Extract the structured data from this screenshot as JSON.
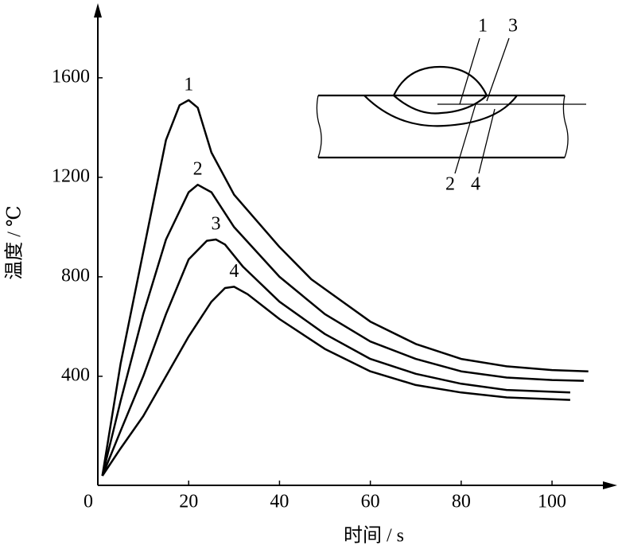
{
  "chart_data": {
    "type": "line",
    "xlabel": "时间 / s",
    "ylabel": "温度 / ℃",
    "xlim": [
      0,
      114
    ],
    "ylim": [
      0,
      1900
    ],
    "xticks": [
      0,
      20,
      40,
      60,
      80,
      100
    ],
    "yticks": [
      400,
      800,
      1200,
      1600
    ],
    "color": "#000000",
    "series": [
      {
        "name": "1",
        "x": [
          1,
          5,
          10,
          15,
          18,
          20,
          22,
          25,
          30,
          40,
          47,
          60,
          70,
          80,
          90,
          100,
          108
        ],
        "values": [
          0,
          450,
          900,
          1350,
          1490,
          1510,
          1480,
          1300,
          1130,
          920,
          790,
          620,
          530,
          470,
          440,
          425,
          420
        ]
      },
      {
        "name": "2",
        "x": [
          1,
          5,
          10,
          15,
          20,
          22,
          25,
          30,
          40,
          50,
          60,
          70,
          80,
          90,
          100,
          107
        ],
        "values": [
          0,
          300,
          650,
          950,
          1140,
          1170,
          1140,
          1000,
          800,
          650,
          540,
          470,
          420,
          395,
          385,
          382
        ]
      },
      {
        "name": "3",
        "x": [
          1,
          5,
          10,
          15,
          20,
          24,
          26,
          28,
          32,
          40,
          50,
          60,
          70,
          80,
          90,
          104
        ],
        "values": [
          0,
          180,
          400,
          650,
          870,
          945,
          950,
          930,
          840,
          700,
          570,
          470,
          410,
          370,
          345,
          335
        ]
      },
      {
        "name": "4",
        "x": [
          1,
          5,
          10,
          15,
          20,
          25,
          28,
          30,
          33,
          40,
          50,
          60,
          70,
          80,
          90,
          104
        ],
        "values": [
          0,
          110,
          240,
          400,
          560,
          700,
          755,
          760,
          730,
          630,
          510,
          420,
          365,
          335,
          315,
          305
        ]
      }
    ],
    "inset_labels": [
      "1",
      "3",
      "2",
      "4"
    ]
  }
}
